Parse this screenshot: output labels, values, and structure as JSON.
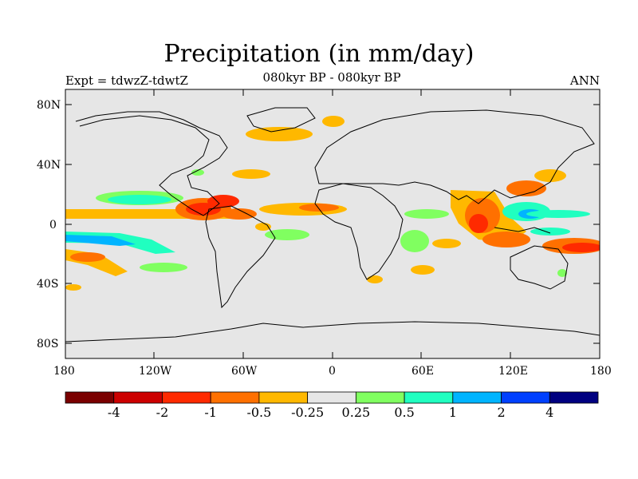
{
  "title": "Precipitation (in mm/day)",
  "left_label": "Expt = tdwzZ-tdwtZ",
  "center_label": "080kyr BP - 080kyr BP",
  "right_label": "ANN",
  "lat_ticks": [
    "80N",
    "40N",
    "0",
    "40S",
    "80S"
  ],
  "lon_ticks": [
    "180",
    "120W",
    "60W",
    "0",
    "60E",
    "120E",
    "180"
  ],
  "colorbar": {
    "colors": [
      "#7a0000",
      "#cc0000",
      "#ff2a00",
      "#ff7000",
      "#ffb800",
      "#e6e6e6",
      "#80ff60",
      "#20ffc0",
      "#00b4ff",
      "#0040ff",
      "#000080"
    ],
    "labels": [
      "-4",
      "-2",
      "-1",
      "-0.5",
      "-0.25",
      "0.25",
      "0.5",
      "1",
      "2",
      "4"
    ]
  },
  "map_background": "#e6e6e6"
}
